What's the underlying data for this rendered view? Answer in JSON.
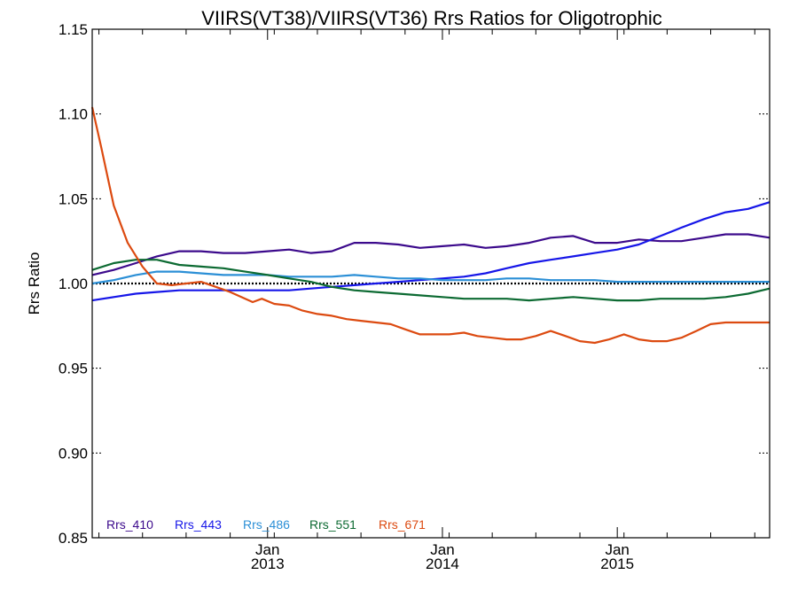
{
  "chart_data": {
    "type": "line",
    "title": "VIIRS(VT38)/VIIRS(VT36)  Rrs Ratios for Oligotrophic",
    "xlabel": "",
    "ylabel": "Rrs Ratio",
    "ylim": [
      0.85,
      1.15
    ],
    "xlim": [
      "2012-01-01",
      "2015-11-15"
    ],
    "yticks": [
      {
        "value": 0.85,
        "label": "0.85"
      },
      {
        "value": 0.9,
        "label": "0.90"
      },
      {
        "value": 0.95,
        "label": "0.95"
      },
      {
        "value": 1.0,
        "label": "1.00"
      },
      {
        "value": 1.05,
        "label": "1.05"
      },
      {
        "value": 1.1,
        "label": "1.10"
      },
      {
        "value": 1.15,
        "label": "1.15"
      }
    ],
    "xticks": [
      {
        "date": "2013-01-01",
        "month": "Jan",
        "year": "2013"
      },
      {
        "date": "2014-01-01",
        "month": "Jan",
        "year": "2014"
      },
      {
        "date": "2015-01-01",
        "month": "Jan",
        "year": "2015"
      }
    ],
    "reference_line": 1.0,
    "grid": false,
    "legend_position": "bottom-left",
    "series": [
      {
        "name": "Rrs_410",
        "color": "#3c0a8c",
        "x": [
          "2012-01-01",
          "2012-02-15",
          "2012-04-01",
          "2012-05-15",
          "2012-07-01",
          "2012-08-15",
          "2012-10-01",
          "2012-11-15",
          "2013-01-01",
          "2013-02-15",
          "2013-04-01",
          "2013-05-15",
          "2013-07-01",
          "2013-08-15",
          "2013-10-01",
          "2013-11-15",
          "2014-01-01",
          "2014-02-15",
          "2014-04-01",
          "2014-05-15",
          "2014-07-01",
          "2014-08-15",
          "2014-10-01",
          "2014-11-15",
          "2015-01-01",
          "2015-02-15",
          "2015-04-01",
          "2015-05-15",
          "2015-07-01",
          "2015-08-15",
          "2015-10-01",
          "2015-11-15"
        ],
        "y": [
          1.005,
          1.008,
          1.012,
          1.016,
          1.019,
          1.019,
          1.018,
          1.018,
          1.019,
          1.02,
          1.018,
          1.019,
          1.024,
          1.024,
          1.023,
          1.021,
          1.022,
          1.023,
          1.021,
          1.022,
          1.024,
          1.027,
          1.028,
          1.024,
          1.024,
          1.026,
          1.025,
          1.025,
          1.027,
          1.029,
          1.029,
          1.027
        ]
      },
      {
        "name": "Rrs_443",
        "color": "#1616e8",
        "x": [
          "2012-01-01",
          "2012-02-15",
          "2012-04-01",
          "2012-05-15",
          "2012-07-01",
          "2012-08-15",
          "2012-10-01",
          "2012-11-15",
          "2013-01-01",
          "2013-02-15",
          "2013-04-01",
          "2013-05-15",
          "2013-07-01",
          "2013-08-15",
          "2013-10-01",
          "2013-11-15",
          "2014-01-01",
          "2014-02-15",
          "2014-04-01",
          "2014-05-15",
          "2014-07-01",
          "2014-08-15",
          "2014-10-01",
          "2014-11-15",
          "2015-01-01",
          "2015-02-15",
          "2015-04-01",
          "2015-05-15",
          "2015-07-01",
          "2015-08-15",
          "2015-10-01",
          "2015-11-15"
        ],
        "y": [
          0.99,
          0.992,
          0.994,
          0.995,
          0.996,
          0.996,
          0.996,
          0.996,
          0.996,
          0.996,
          0.997,
          0.998,
          0.999,
          1.0,
          1.001,
          1.002,
          1.003,
          1.004,
          1.006,
          1.009,
          1.012,
          1.014,
          1.016,
          1.018,
          1.02,
          1.023,
          1.028,
          1.033,
          1.038,
          1.042,
          1.044,
          1.048
        ]
      },
      {
        "name": "Rrs_486",
        "color": "#2b8fd6",
        "x": [
          "2012-01-01",
          "2012-02-15",
          "2012-04-01",
          "2012-05-15",
          "2012-07-01",
          "2012-08-15",
          "2012-10-01",
          "2012-11-15",
          "2013-01-01",
          "2013-02-15",
          "2013-04-01",
          "2013-05-15",
          "2013-07-01",
          "2013-08-15",
          "2013-10-01",
          "2013-11-15",
          "2014-01-01",
          "2014-02-15",
          "2014-04-01",
          "2014-05-15",
          "2014-07-01",
          "2014-08-15",
          "2014-10-01",
          "2014-11-15",
          "2015-01-01",
          "2015-02-15",
          "2015-04-01",
          "2015-05-15",
          "2015-07-01",
          "2015-08-15",
          "2015-10-01",
          "2015-11-15"
        ],
        "y": [
          1.0,
          1.002,
          1.005,
          1.007,
          1.007,
          1.006,
          1.005,
          1.005,
          1.005,
          1.004,
          1.004,
          1.004,
          1.005,
          1.004,
          1.003,
          1.003,
          1.002,
          1.002,
          1.002,
          1.003,
          1.003,
          1.002,
          1.002,
          1.002,
          1.001,
          1.001,
          1.001,
          1.001,
          1.001,
          1.001,
          1.001,
          1.001
        ]
      },
      {
        "name": "Rrs_551",
        "color": "#0c6a32",
        "x": [
          "2012-01-01",
          "2012-02-15",
          "2012-04-01",
          "2012-05-15",
          "2012-07-01",
          "2012-08-15",
          "2012-10-01",
          "2012-11-15",
          "2013-01-01",
          "2013-02-15",
          "2013-04-01",
          "2013-05-15",
          "2013-07-01",
          "2013-08-15",
          "2013-10-01",
          "2013-11-15",
          "2014-01-01",
          "2014-02-15",
          "2014-04-01",
          "2014-05-15",
          "2014-07-01",
          "2014-08-15",
          "2014-10-01",
          "2014-11-15",
          "2015-01-01",
          "2015-02-15",
          "2015-04-01",
          "2015-05-15",
          "2015-07-01",
          "2015-08-15",
          "2015-10-01",
          "2015-11-15"
        ],
        "y": [
          1.008,
          1.012,
          1.014,
          1.014,
          1.011,
          1.01,
          1.009,
          1.007,
          1.005,
          1.003,
          1.001,
          0.998,
          0.996,
          0.995,
          0.994,
          0.993,
          0.992,
          0.991,
          0.991,
          0.991,
          0.99,
          0.991,
          0.992,
          0.991,
          0.99,
          0.99,
          0.991,
          0.991,
          0.991,
          0.992,
          0.994,
          0.997
        ]
      },
      {
        "name": "Rrs_671",
        "color": "#dc4a10",
        "x": [
          "2012-01-01",
          "2012-01-20",
          "2012-02-15",
          "2012-03-15",
          "2012-04-15",
          "2012-05-15",
          "2012-06-15",
          "2012-07-15",
          "2012-08-15",
          "2012-09-15",
          "2012-10-15",
          "2012-12-01",
          "2012-12-20",
          "2013-01-15",
          "2013-02-15",
          "2013-03-15",
          "2013-04-15",
          "2013-05-15",
          "2013-06-15",
          "2013-07-15",
          "2013-08-15",
          "2013-09-15",
          "2013-10-15",
          "2013-11-15",
          "2013-12-15",
          "2014-01-15",
          "2014-02-15",
          "2014-03-15",
          "2014-04-15",
          "2014-05-15",
          "2014-06-15",
          "2014-07-15",
          "2014-08-15",
          "2014-09-15",
          "2014-10-15",
          "2014-11-15",
          "2014-12-15",
          "2015-01-15",
          "2015-02-15",
          "2015-03-15",
          "2015-04-15",
          "2015-05-15",
          "2015-06-15",
          "2015-07-15",
          "2015-08-15",
          "2015-09-15",
          "2015-10-15",
          "2015-11-15"
        ],
        "y": [
          1.104,
          1.08,
          1.046,
          1.024,
          1.01,
          1.0,
          0.999,
          1.0,
          1.001,
          0.998,
          0.995,
          0.989,
          0.991,
          0.988,
          0.987,
          0.984,
          0.982,
          0.981,
          0.979,
          0.978,
          0.977,
          0.976,
          0.973,
          0.97,
          0.97,
          0.97,
          0.971,
          0.969,
          0.968,
          0.967,
          0.967,
          0.969,
          0.972,
          0.969,
          0.966,
          0.965,
          0.967,
          0.97,
          0.967,
          0.966,
          0.966,
          0.968,
          0.972,
          0.976,
          0.977,
          0.977,
          0.977,
          0.977
        ]
      }
    ]
  }
}
